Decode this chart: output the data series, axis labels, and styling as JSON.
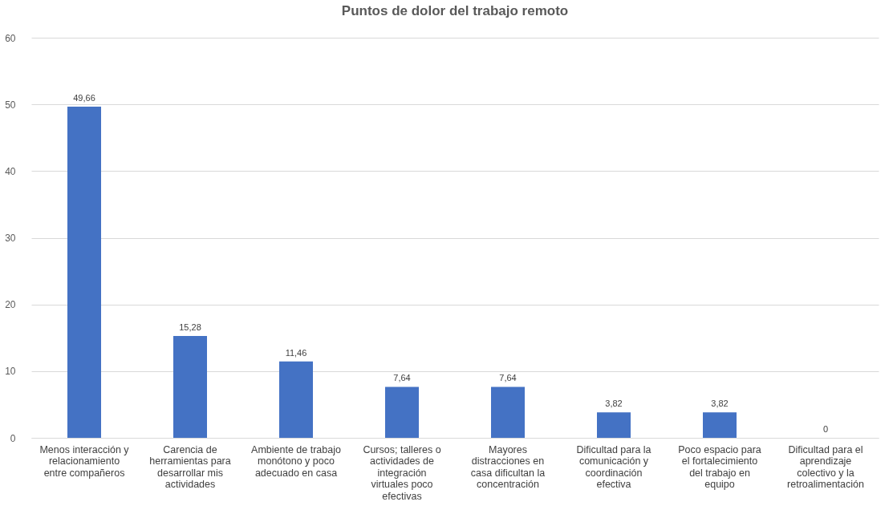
{
  "chart_data": {
    "type": "bar",
    "title": "Puntos de dolor del trabajo remoto",
    "categories": [
      "Menos interacción y relacionamiento entre compañeros",
      "Carencia de herramientas para desarrollar mis actividades",
      "Ambiente de trabajo monótono y poco adecuado en casa",
      "Cursos; talleres o actividades de integración virtuales poco efectivas",
      "Mayores distracciones en casa dificultan la concentración",
      "Dificultad para la comunicación y coordinación efectiva",
      "Poco espacio para el fortalecimiento del trabajo en equipo",
      "Dificultad para el aprendizaje colectivo y la retroalimentación"
    ],
    "values": [
      49.66,
      15.28,
      11.46,
      7.64,
      7.64,
      3.82,
      3.82,
      0
    ],
    "value_labels": [
      "49,66",
      "15,28",
      "11,46",
      "7,64",
      "7,64",
      "3,82",
      "3,82",
      "0"
    ],
    "color": "#4472c4",
    "ylim": [
      0,
      60
    ],
    "yticks": [
      0,
      10,
      20,
      30,
      40,
      50,
      60
    ],
    "grid": "y"
  }
}
